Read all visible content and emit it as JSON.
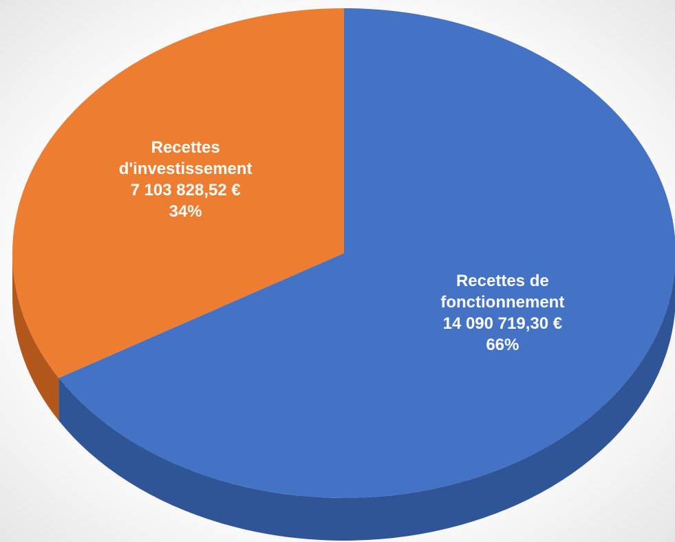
{
  "chart_data": {
    "type": "pie",
    "categories": [
      "Recettes de fonctionnement",
      "Recettes d'investissement"
    ],
    "values": [
      14090719.3,
      7103828.52
    ],
    "value_labels": [
      "14 090 719,30 €",
      "7 103 828,52 €"
    ],
    "percentages": [
      66,
      34
    ],
    "percent_labels": [
      "66%",
      "34%"
    ],
    "colors": [
      "#4472c4",
      "#ed7d31"
    ],
    "side_colors": [
      "#2f5597",
      "#b2581c"
    ]
  }
}
